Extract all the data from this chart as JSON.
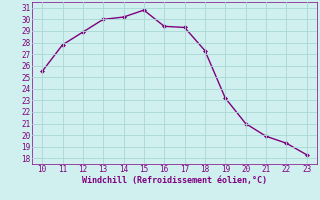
{
  "x": [
    10,
    11,
    12,
    13,
    14,
    15,
    16,
    17,
    18,
    19,
    20,
    21,
    22,
    23
  ],
  "y": [
    25.5,
    27.8,
    28.9,
    30.0,
    30.2,
    30.8,
    29.4,
    29.3,
    27.3,
    23.2,
    21.0,
    19.9,
    19.3,
    18.3
  ],
  "line_color": "#800080",
  "marker": "D",
  "marker_size": 2.0,
  "line_width": 1.0,
  "bg_color": "#cff0ee",
  "grid_color": "#a8d8d4",
  "xlabel": "Windchill (Refroidissement éolien,°C)",
  "xlabel_color": "#800080",
  "tick_color": "#800080",
  "xlim": [
    9.5,
    23.5
  ],
  "ylim": [
    17.5,
    31.5
  ],
  "xticks": [
    10,
    11,
    12,
    13,
    14,
    15,
    16,
    17,
    18,
    19,
    20,
    21,
    22,
    23
  ],
  "yticks": [
    18,
    19,
    20,
    21,
    22,
    23,
    24,
    25,
    26,
    27,
    28,
    29,
    30,
    31
  ],
  "font_family": "monospace",
  "tick_fontsize": 5.5,
  "xlabel_fontsize": 6.0
}
